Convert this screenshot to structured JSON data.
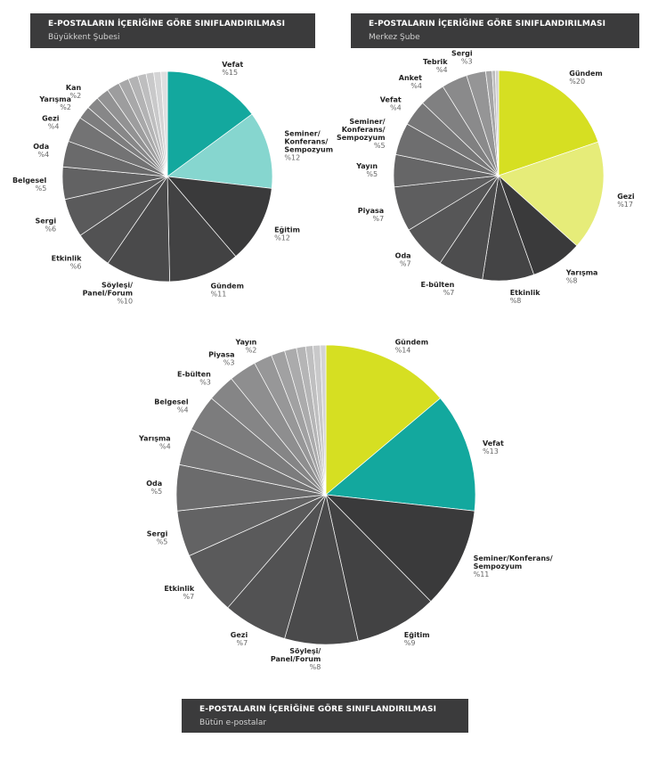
{
  "headers": [
    {
      "title": "E-POSTALARIN İÇERİĞİNE GÖRE SINIFLANDIRILMASI",
      "subtitle": "Büyükkent Şubesi"
    },
    {
      "title": "E-POSTALARIN İÇERİĞİNE GÖRE SINIFLANDIRILMASI",
      "subtitle": "Merkez Şube"
    },
    {
      "title": "E-POSTALARIN İÇERİĞİNE GÖRE SINIFLANDIRILMASI",
      "subtitle": "Bütün e-postalar"
    }
  ],
  "chart_data": [
    {
      "type": "pie",
      "title": "Büyükkent Şubesi",
      "slices": [
        {
          "label": [
            "Vefat"
          ],
          "value": 15,
          "value_label": "%15",
          "color": "#13a89e"
        },
        {
          "label": [
            "Seminer/",
            "Konferans/",
            "Sempozyum"
          ],
          "value": 12,
          "value_label": "%12",
          "color": "#86d6cf"
        },
        {
          "label": [
            "Eğitim"
          ],
          "value": 12,
          "value_label": "%12",
          "color": "#3a3a3b"
        },
        {
          "label": [
            "Gündem"
          ],
          "value": 11,
          "value_label": "%11",
          "color": "#424243"
        },
        {
          "label": [
            "Söyleşi/",
            "Panel/Forum"
          ],
          "value": 10,
          "value_label": "%10",
          "color": "#4a4a4b"
        },
        {
          "label": [
            "Etkinlik"
          ],
          "value": 6,
          "value_label": "%6",
          "color": "#525253"
        },
        {
          "label": [
            "Sergi"
          ],
          "value": 6,
          "value_label": "%6",
          "color": "#5a5a5b"
        },
        {
          "label": [
            "Belgesel"
          ],
          "value": 5,
          "value_label": "%5",
          "color": "#626263"
        },
        {
          "label": [
            "Oda"
          ],
          "value": 4,
          "value_label": "%4",
          "color": "#6a6a6b"
        },
        {
          "label": [
            "Gezi"
          ],
          "value": 4,
          "value_label": "%4",
          "color": "#737374"
        },
        {
          "label": [
            "Yarışma"
          ],
          "value": 2,
          "value_label": "%2",
          "color": "#7d7d7e"
        },
        {
          "label": [
            "Kan"
          ],
          "value": 2,
          "value_label": "%2",
          "color": "#878788"
        },
        {
          "label": [
            ""
          ],
          "value": 2,
          "value_label": "",
          "color": "#929293"
        },
        {
          "label": [
            ""
          ],
          "value": 2,
          "value_label": "",
          "color": "#9d9d9e"
        },
        {
          "label": [
            ""
          ],
          "value": 1.6,
          "value_label": "",
          "color": "#a8a8a9"
        },
        {
          "label": [
            ""
          ],
          "value": 1.5,
          "value_label": "",
          "color": "#b3b3b4"
        },
        {
          "label": [
            ""
          ],
          "value": 1.3,
          "value_label": "",
          "color": "#bebebf"
        },
        {
          "label": [
            ""
          ],
          "value": 1.2,
          "value_label": "",
          "color": "#c9c9ca"
        },
        {
          "label": [
            ""
          ],
          "value": 1.1,
          "value_label": "",
          "color": "#d4d4d5"
        },
        {
          "label": [
            ""
          ],
          "value": 1,
          "value_label": "",
          "color": "#dfdfe0"
        }
      ]
    },
    {
      "type": "pie",
      "title": "Merkez Şube",
      "slices": [
        {
          "label": [
            "Gündem"
          ],
          "value": 20,
          "value_label": "%20",
          "color": "#d6df22"
        },
        {
          "label": [
            "Gezi"
          ],
          "value": 17,
          "value_label": "%17",
          "color": "#e6ec79"
        },
        {
          "label": [
            "Yarışma"
          ],
          "value": 8,
          "value_label": "%8",
          "color": "#3a3a3b"
        },
        {
          "label": [
            "Etkinlik"
          ],
          "value": 8,
          "value_label": "%8",
          "color": "#444445"
        },
        {
          "label": [
            "E-bülten"
          ],
          "value": 7,
          "value_label": "%7",
          "color": "#4d4d4e"
        },
        {
          "label": [
            "Oda"
          ],
          "value": 7,
          "value_label": "%7",
          "color": "#565657"
        },
        {
          "label": [
            "Piyasa"
          ],
          "value": 7,
          "value_label": "%7",
          "color": "#5e5e5f"
        },
        {
          "label": [
            "Yayın"
          ],
          "value": 5,
          "value_label": "%5",
          "color": "#666667"
        },
        {
          "label": [
            "Seminer/",
            "Konferans/",
            "Sempozyum"
          ],
          "value": 5,
          "value_label": "%5",
          "color": "#6e6e6f"
        },
        {
          "label": [
            "Vefat"
          ],
          "value": 4,
          "value_label": "%4",
          "color": "#777778"
        },
        {
          "label": [
            "Anket"
          ],
          "value": 4,
          "value_label": "%4",
          "color": "#808081"
        },
        {
          "label": [
            "Tebrik"
          ],
          "value": 4,
          "value_label": "%4",
          "color": "#8a8a8b"
        },
        {
          "label": [
            "Sergi"
          ],
          "value": 3,
          "value_label": "%3",
          "color": "#959596"
        },
        {
          "label": [
            ""
          ],
          "value": 1,
          "value_label": "",
          "color": "#a5a5a6"
        },
        {
          "label": [
            ""
          ],
          "value": 0.5,
          "value_label": "",
          "color": "#bbbbbc"
        },
        {
          "label": [
            ""
          ],
          "value": 0.5,
          "value_label": "",
          "color": "#d0d0d1"
        }
      ]
    },
    {
      "type": "pie",
      "title": "Bütün e-postalar",
      "slices": [
        {
          "label": [
            "Gündem"
          ],
          "value": 14,
          "value_label": "%14",
          "color": "#d6df22"
        },
        {
          "label": [
            "Vefat"
          ],
          "value": 13,
          "value_label": "%13",
          "color": "#13a89e"
        },
        {
          "label": [
            "Seminer/Konferans/",
            "Sempozyum"
          ],
          "value": 11,
          "value_label": "%11",
          "color": "#3a3a3b"
        },
        {
          "label": [
            "Eğitim"
          ],
          "value": 9,
          "value_label": "%9",
          "color": "#424243"
        },
        {
          "label": [
            "Söyleşi/",
            "Panel/Forum"
          ],
          "value": 8,
          "value_label": "%8",
          "color": "#4a4a4b"
        },
        {
          "label": [
            "Gezi"
          ],
          "value": 7,
          "value_label": "%7",
          "color": "#525253"
        },
        {
          "label": [
            "Etkinlik"
          ],
          "value": 7,
          "value_label": "%7",
          "color": "#5a5a5b"
        },
        {
          "label": [
            "Sergi"
          ],
          "value": 5,
          "value_label": "%5",
          "color": "#636364"
        },
        {
          "label": [
            "Oda"
          ],
          "value": 5,
          "value_label": "%5",
          "color": "#6b6b6c"
        },
        {
          "label": [
            "Yarışma"
          ],
          "value": 4,
          "value_label": "%4",
          "color": "#737374"
        },
        {
          "label": [
            "Belgesel"
          ],
          "value": 4,
          "value_label": "%4",
          "color": "#7c7c7d"
        },
        {
          "label": [
            "E-bülten"
          ],
          "value": 3,
          "value_label": "%3",
          "color": "#858586"
        },
        {
          "label": [
            "Piyasa"
          ],
          "value": 3,
          "value_label": "%3",
          "color": "#8e8e8f"
        },
        {
          "label": [
            "Yayın"
          ],
          "value": 2,
          "value_label": "%2",
          "color": "#979798"
        },
        {
          "label": [
            ""
          ],
          "value": 1.5,
          "value_label": "",
          "color": "#a1a1a2"
        },
        {
          "label": [
            ""
          ],
          "value": 1.3,
          "value_label": "",
          "color": "#ababac"
        },
        {
          "label": [
            ""
          ],
          "value": 1,
          "value_label": "",
          "color": "#b5b5b6"
        },
        {
          "label": [
            ""
          ],
          "value": 0.8,
          "value_label": "",
          "color": "#bfbfc0"
        },
        {
          "label": [
            ""
          ],
          "value": 0.8,
          "value_label": "",
          "color": "#c9c9ca"
        },
        {
          "label": [
            ""
          ],
          "value": 0.6,
          "value_label": "",
          "color": "#d3d3d4"
        }
      ]
    }
  ]
}
